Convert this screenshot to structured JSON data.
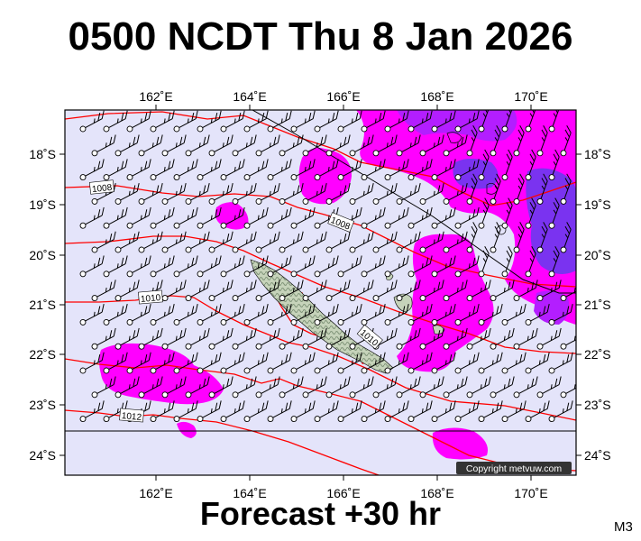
{
  "title": "0500 NCDT Thu 8 Jan 2026",
  "subtitle": "Forecast +30 hr",
  "model_code": "M3",
  "copyright": "Copyright metvuw.com",
  "longitude_ticks": [
    "162˚E",
    "164˚E",
    "166˚E",
    "168˚E",
    "170˚E"
  ],
  "latitude_ticks": [
    "18˚S",
    "19˚S",
    "20˚S",
    "21˚S",
    "22˚S",
    "23˚S",
    "24˚S"
  ],
  "isobar_labels": [
    "1008",
    "1008",
    "1010",
    "1010",
    "1012"
  ],
  "colors": {
    "sea": "#e4e4fa",
    "rain_light": "#ff00ff",
    "rain_heavy": "#7a33f0",
    "rain_mid": "#b31eff",
    "isobar": "#ff0000",
    "land": "#c6d3ba",
    "land_relief": "#7f9478"
  }
}
